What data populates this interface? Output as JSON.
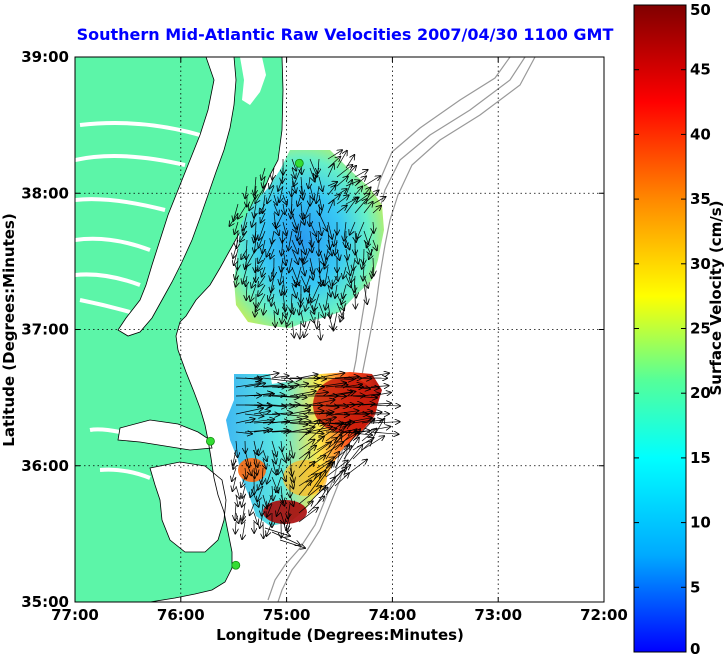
{
  "title": "Southern Mid-Atlantic Raw Velocities 2007/04/30 1100 GMT",
  "x_axis": {
    "label": "Longitude (Degrees:Minutes)",
    "ticks": [
      "77:00",
      "76:00",
      "75:00",
      "74:00",
      "73:00",
      "72:00"
    ]
  },
  "y_axis": {
    "label": "Latitude (Degrees:Minutes)",
    "ticks": [
      "39:00",
      "38:00",
      "37:00",
      "36:00",
      "35:00"
    ]
  },
  "colorbar": {
    "label": "Surface Velocity (cm/s)",
    "ticks": [
      "50",
      "45",
      "40",
      "35",
      "30",
      "25",
      "20",
      "15",
      "10",
      "5",
      "0"
    ],
    "colors": [
      "#0000ff",
      "#00aaff",
      "#00ffff",
      "#55ff99",
      "#ffff00",
      "#ff8800",
      "#ff0000",
      "#800000"
    ]
  },
  "colors": {
    "land": "#5cf5a8",
    "title": "#0000ff",
    "grid": "#000000",
    "station_marker": "#33dd33",
    "bathymetry": "#999999"
  },
  "map_extent": {
    "lon_west": -77.0,
    "lon_east": -72.0,
    "lat_south": 35.0,
    "lat_north": 39.0
  },
  "stations": [
    {
      "lon": -74.88,
      "lat": 38.22
    },
    {
      "lon": -75.72,
      "lat": 36.18
    },
    {
      "lon": -75.48,
      "lat": 35.27
    }
  ],
  "velocity_ranges": {
    "north_patch_cm_s": [
      3,
      28
    ],
    "south_patch_cm_s": [
      5,
      50
    ]
  }
}
